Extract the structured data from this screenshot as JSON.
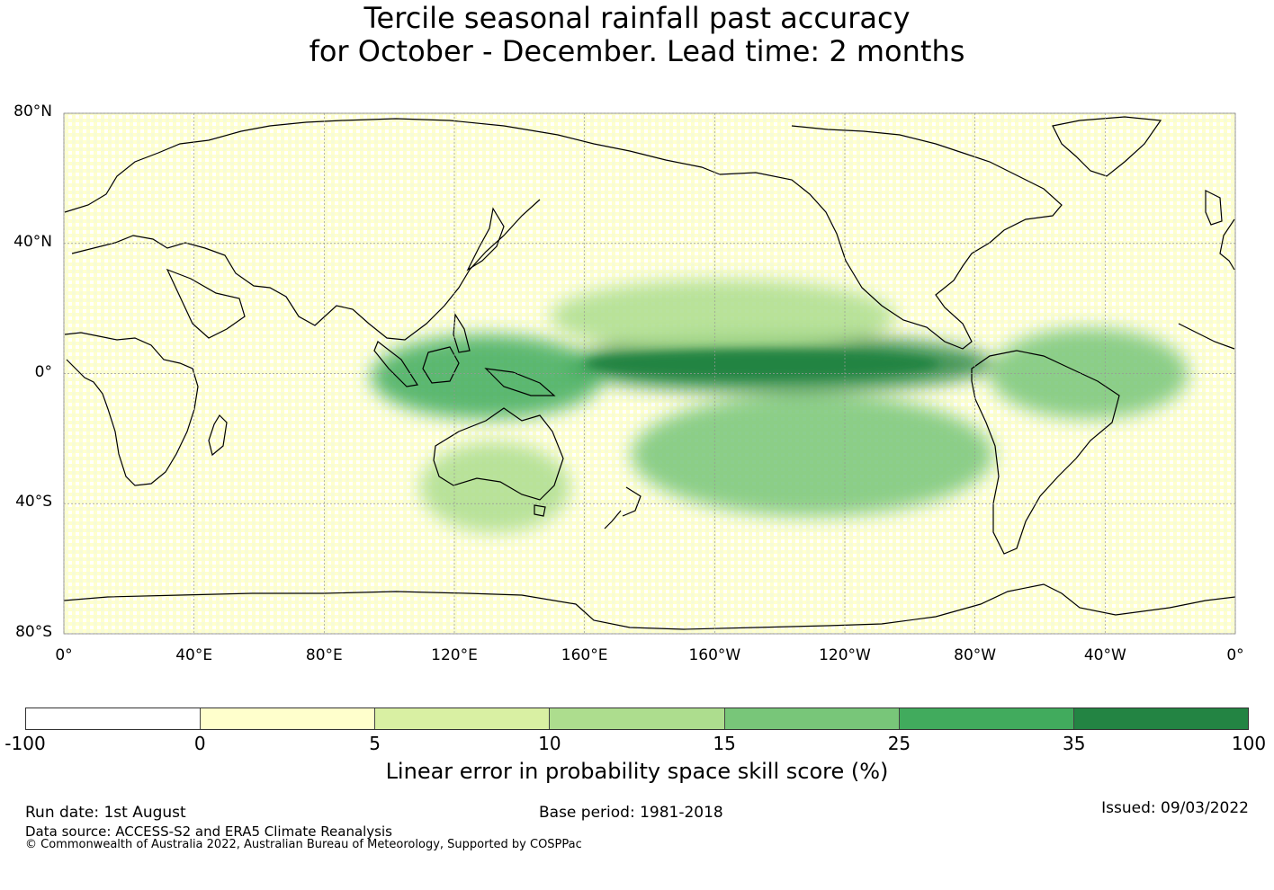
{
  "title_line1": "Tercile seasonal rainfall past accuracy",
  "title_line2": "for October - December. Lead time: 2 months",
  "map": {
    "lat_labels": [
      "80°N",
      "40°N",
      "0°",
      "40°S",
      "80°S"
    ],
    "lat_values": [
      80,
      40,
      0,
      -40,
      -80
    ],
    "lon_labels": [
      "0°",
      "40°E",
      "80°E",
      "120°E",
      "160°E",
      "160°W",
      "120°W",
      "80°W",
      "40°W",
      "0°"
    ],
    "lon_values": [
      0,
      40,
      80,
      120,
      160,
      200,
      240,
      280,
      320,
      360
    ],
    "lon_range": [
      0,
      360
    ],
    "lat_range": [
      -80,
      80
    ],
    "gridlines": true,
    "skill_features": [
      {
        "region": "Equatorial Pacific band",
        "lon_range": [
          160,
          280
        ],
        "lat_range": [
          -2,
          8
        ],
        "level": "35-100"
      },
      {
        "region": "Maritime Continent",
        "lon_range": [
          100,
          160
        ],
        "lat_range": [
          -10,
          8
        ],
        "level": "25-35"
      },
      {
        "region": "South Pacific diagonal band",
        "lon_range": [
          180,
          280
        ],
        "lat_range": [
          -40,
          -10
        ],
        "level": "15-25"
      },
      {
        "region": "North Pacific band",
        "lon_range": [
          155,
          250
        ],
        "lat_range": [
          10,
          25
        ],
        "level": "10-15"
      },
      {
        "region": "Tropical Atlantic",
        "lon_range": [
          290,
          340
        ],
        "lat_range": [
          -10,
          10
        ],
        "level": "15-25"
      },
      {
        "region": "Southern Australia",
        "lon_range": [
          115,
          150
        ],
        "lat_range": [
          -45,
          -25
        ],
        "level": "10-15"
      }
    ]
  },
  "colorbar": {
    "ticks": [
      "-100",
      "0",
      "5",
      "10",
      "15",
      "25",
      "35",
      "100"
    ],
    "colors": [
      "#ffffff",
      "#ffffcc",
      "#d9f0a3",
      "#addd8e",
      "#78c679",
      "#41ab5d",
      "#238443"
    ],
    "label": "Linear error in probability space skill score (%)"
  },
  "footer": {
    "run_date": "Run date: 1st August",
    "base_period": "Base period: 1981-2018",
    "issued": "Issued: 09/03/2022",
    "data_source": "Data source: ACCESS-S2 and ERA5 Climate Reanalysis",
    "copyright": "© Commonwealth of Australia 2022, Australian Bureau of Meteorology, Supported by COSPPac"
  }
}
